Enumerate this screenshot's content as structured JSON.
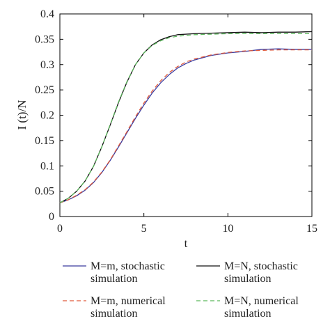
{
  "chart_data": {
    "type": "line",
    "title": "",
    "xlabel": "t",
    "ylabel": "I (t)/N",
    "xlim": [
      0,
      15
    ],
    "ylim": [
      0,
      0.4
    ],
    "xticks": [
      0,
      5,
      10,
      15
    ],
    "xtick_labels": [
      "0",
      "5",
      "10",
      "15"
    ],
    "yticks": [
      0,
      0.05,
      0.1,
      0.15,
      0.2,
      0.25,
      0.3,
      0.35,
      0.4
    ],
    "ytick_labels": [
      "0",
      "0.05",
      "0.1",
      "0.15",
      "0.2",
      "0.25",
      "0.3",
      "0.35",
      "0.4"
    ],
    "grid": false,
    "legend_position": "below",
    "series": [
      {
        "name": "M=m, stochastic simulation",
        "color": "#3b3b9e",
        "style": "solid",
        "x": [
          0,
          0.5,
          1,
          1.5,
          2,
          2.5,
          3,
          3.5,
          4,
          4.5,
          5,
          5.5,
          6,
          6.5,
          7,
          7.5,
          8,
          9,
          10,
          11,
          12,
          13,
          14,
          15
        ],
        "y": [
          0.027,
          0.033,
          0.041,
          0.052,
          0.067,
          0.087,
          0.111,
          0.138,
          0.166,
          0.194,
          0.22,
          0.244,
          0.264,
          0.28,
          0.293,
          0.302,
          0.309,
          0.318,
          0.323,
          0.326,
          0.33,
          0.331,
          0.33,
          0.33
        ]
      },
      {
        "name": "M=N, stochastic simulation",
        "color": "#111111",
        "style": "solid",
        "x": [
          0,
          0.5,
          1,
          1.5,
          2,
          2.5,
          3,
          3.5,
          4,
          4.5,
          5,
          5.5,
          6,
          6.5,
          7,
          8,
          9,
          10,
          11,
          12,
          13,
          14,
          15
        ],
        "y": [
          0.027,
          0.036,
          0.05,
          0.07,
          0.099,
          0.138,
          0.181,
          0.226,
          0.266,
          0.3,
          0.323,
          0.339,
          0.349,
          0.355,
          0.359,
          0.361,
          0.362,
          0.363,
          0.364,
          0.363,
          0.364,
          0.364,
          0.365
        ]
      },
      {
        "name": "M=m, numerical simulation",
        "color": "#e05a3c",
        "style": "dashed",
        "x": [
          0,
          0.5,
          1,
          1.5,
          2,
          2.5,
          3,
          3.5,
          4,
          4.5,
          5,
          5.5,
          6,
          6.5,
          7,
          7.5,
          8,
          9,
          10,
          11,
          12,
          13,
          14,
          15
        ],
        "y": [
          0.027,
          0.033,
          0.042,
          0.053,
          0.068,
          0.088,
          0.112,
          0.14,
          0.168,
          0.197,
          0.224,
          0.248,
          0.268,
          0.284,
          0.296,
          0.305,
          0.311,
          0.319,
          0.324,
          0.327,
          0.328,
          0.329,
          0.329,
          0.329
        ]
      },
      {
        "name": "M=N, numerical simulation",
        "color": "#5cb85c",
        "style": "dashed",
        "x": [
          0,
          0.5,
          1,
          1.5,
          2,
          2.5,
          3,
          3.5,
          4,
          4.5,
          5,
          5.5,
          6,
          6.5,
          7,
          8,
          9,
          10,
          11,
          12,
          13,
          14,
          15
        ],
        "y": [
          0.027,
          0.036,
          0.05,
          0.07,
          0.099,
          0.138,
          0.182,
          0.227,
          0.267,
          0.3,
          0.323,
          0.338,
          0.347,
          0.353,
          0.356,
          0.359,
          0.36,
          0.361,
          0.361,
          0.361,
          0.361,
          0.361,
          0.361
        ]
      }
    ],
    "legend": [
      {
        "line1": "M=m, stochastic",
        "line2": "simulation",
        "series": 0
      },
      {
        "line1": "M=N, stochastic",
        "line2": "simulation",
        "series": 1
      },
      {
        "line1": "M=m, numerical",
        "line2": "simulation",
        "series": 2
      },
      {
        "line1": "M=N, numerical",
        "line2": "simulation",
        "series": 3
      }
    ]
  }
}
